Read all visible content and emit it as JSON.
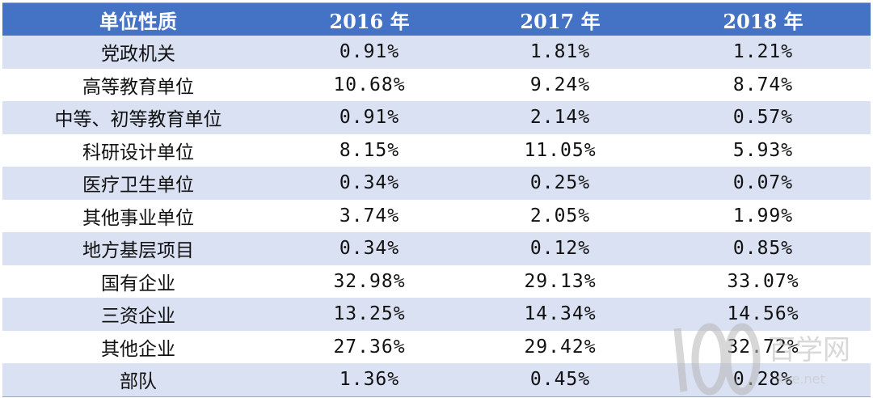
{
  "table": {
    "headers": [
      "单位性质",
      "2016 年",
      "2017 年",
      "2018 年"
    ],
    "rows": [
      [
        "党政机关",
        "0.91%",
        "1.81%",
        "1.21%"
      ],
      [
        "高等教育单位",
        "10.68%",
        "9.24%",
        "8.74%"
      ],
      [
        "中等、初等教育单位",
        "0.91%",
        "2.14%",
        "0.57%"
      ],
      [
        "科研设计单位",
        "8.15%",
        "11.05%",
        "5.93%"
      ],
      [
        "医疗卫生单位",
        "0.34%",
        "0.25%",
        "0.07%"
      ],
      [
        "其他事业单位",
        "3.74%",
        "2.05%",
        "1.99%"
      ],
      [
        "地方基层项目",
        "0.34%",
        "0.12%",
        "0.85%"
      ],
      [
        "国有企业",
        "32.98%",
        "29.13%",
        "33.07%"
      ],
      [
        "三资企业",
        "13.25%",
        "14.34%",
        "14.56%"
      ],
      [
        "其他企业",
        "27.36%",
        "29.42%",
        "32.72%"
      ],
      [
        "部队",
        "1.36%",
        "0.45%",
        "0.28%"
      ]
    ]
  },
  "watermark": {
    "logo_number": "100",
    "logo_text": "百学网",
    "url": "xue.net"
  },
  "colors": {
    "header_bg": "#4472c4",
    "stripe_bg": "#d9e1f2",
    "header_text": "#ffffff"
  }
}
